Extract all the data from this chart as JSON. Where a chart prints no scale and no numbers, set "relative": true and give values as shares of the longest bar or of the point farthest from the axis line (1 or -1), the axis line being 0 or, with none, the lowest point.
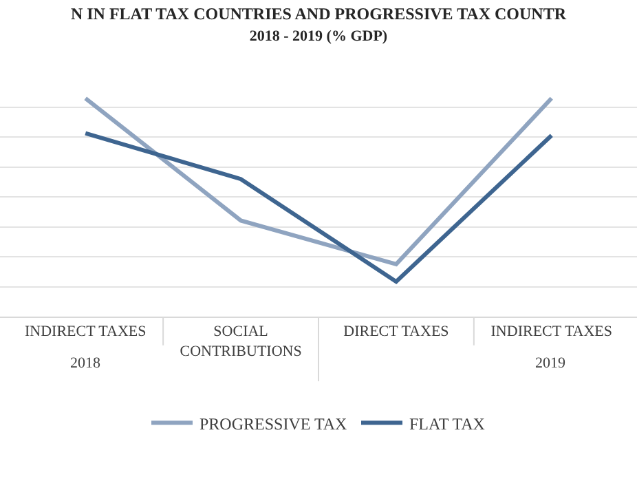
{
  "chart_data": {
    "type": "line",
    "title": "N IN FLAT TAX COUNTRIES AND PROGRESSIVE TAX COUNTR",
    "subtitle": "2018 - 2019 (% GDP)",
    "categories": [
      "INDIRECT TAXES",
      "SOCIAL CONTRIBUTIONS",
      "DIRECT TAXES",
      "INDIRECT TAXES"
    ],
    "relative": true,
    "series": [
      {
        "name": "PROGRESSIVE TAX",
        "color": "#8fa4c0",
        "values": [
          1.0,
          0.44,
          0.24,
          1.0
        ]
      },
      {
        "name": "FLAT TAX",
        "color": "#3e6590",
        "values": [
          0.84,
          0.63,
          0.16,
          0.83
        ]
      }
    ],
    "annotations": [
      "2018",
      "2019"
    ],
    "grid": "y",
    "legend": "bottom",
    "marker": "none",
    "line_style": "solid"
  }
}
